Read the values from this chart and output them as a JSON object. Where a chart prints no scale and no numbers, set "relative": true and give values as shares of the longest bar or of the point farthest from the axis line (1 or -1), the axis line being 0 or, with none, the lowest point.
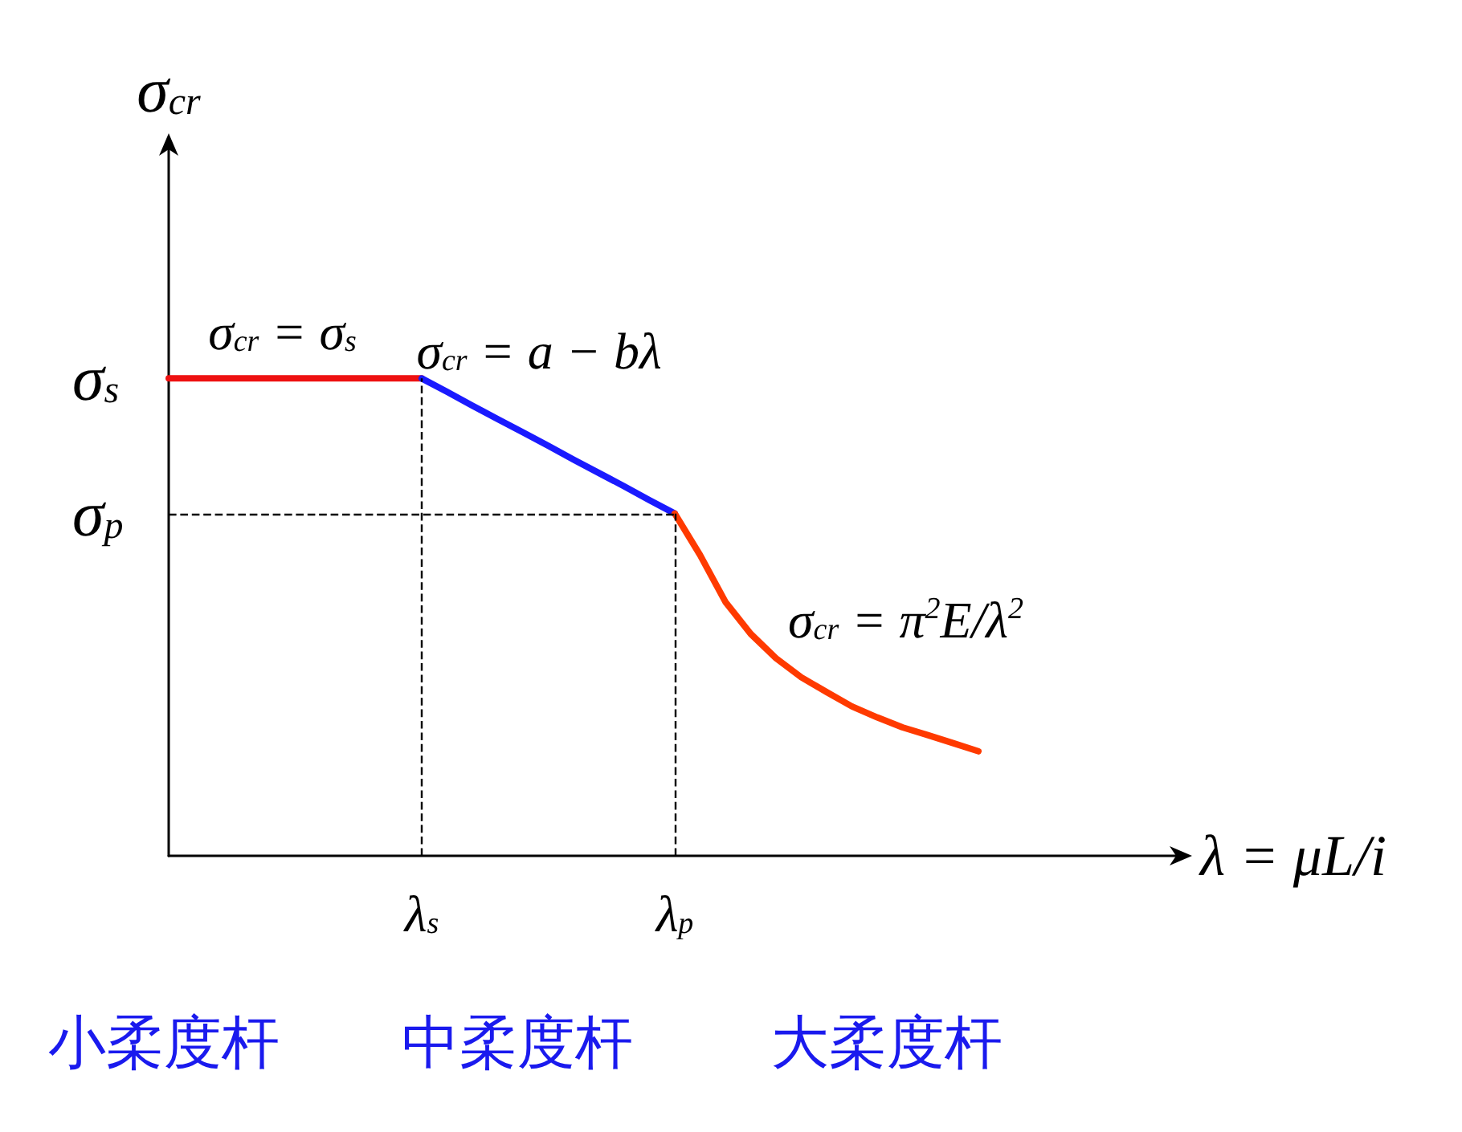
{
  "chart_data": {
    "type": "line",
    "relative": true,
    "legend": false,
    "grid": false,
    "marker": "none",
    "line_style": "solid",
    "ylabel": "σ$_{cr}$",
    "xlabel": "λ = μL/i",
    "categories": [
      null,
      null,
      null,
      null,
      null,
      null,
      null,
      null,
      null,
      null,
      "λ$_{s}$",
      null,
      null,
      null,
      null,
      null,
      null,
      null,
      null,
      null,
      "λ$_{p}$",
      null,
      null,
      null,
      null,
      null,
      null,
      null,
      null,
      null,
      null,
      null,
      null,
      null,
      null,
      null,
      null,
      null,
      null,
      null,
      null
    ],
    "series": [
      {
        "name": "σ$_{cr}$ = σ$_{s}$",
        "color": "#ee1111",
        "values": [
          1,
          1,
          1,
          1,
          1,
          1,
          1,
          1,
          1,
          1,
          1,
          null,
          null,
          null,
          null,
          null,
          null,
          null,
          null,
          null,
          null,
          null,
          null,
          null,
          null,
          null,
          null,
          null,
          null,
          null,
          null,
          null,
          null,
          null,
          null,
          null,
          null,
          null,
          null,
          null,
          null
        ]
      },
      {
        "name": "σ$_{cr}$ = a − bλ",
        "color": "#1a1aff",
        "values": [
          null,
          null,
          null,
          null,
          null,
          null,
          null,
          null,
          null,
          null,
          1,
          0.972,
          0.943,
          0.915,
          0.887,
          0.859,
          0.83,
          0.802,
          0.774,
          0.745,
          0.717,
          null,
          null,
          null,
          null,
          null,
          null,
          null,
          null,
          null,
          null,
          null,
          null,
          null,
          null,
          null,
          null,
          null,
          null,
          null,
          null
        ]
      },
      {
        "name": "σ$_{cr}$ = π$^{2}$E/λ$^{2}$",
        "color": "#ff3a00",
        "values": [
          null,
          null,
          null,
          null,
          null,
          null,
          null,
          null,
          null,
          null,
          null,
          null,
          null,
          null,
          null,
          null,
          null,
          null,
          null,
          null,
          0.717,
          0.63,
          0.532,
          0.465,
          0.414,
          0.374,
          0.343,
          0.313,
          0.29,
          0.269,
          0.253,
          0.236,
          0.219,
          null,
          null,
          null,
          null,
          null,
          null,
          null,
          null
        ]
      }
    ],
    "ref_lines": [
      {
        "axis": "x",
        "value": "λ$_{s}$",
        "line_style": "dashed"
      },
      {
        "axis": "x",
        "value": "λ$_{p}$",
        "line_style": "dashed"
      },
      {
        "axis": "y",
        "value": 0.717,
        "label": "σ$_{p}$",
        "line_style": "dashed"
      }
    ],
    "annotations": [
      "σ$_{s}$",
      "小柔度杆",
      "中柔度杆",
      "大柔度杆"
    ]
  }
}
